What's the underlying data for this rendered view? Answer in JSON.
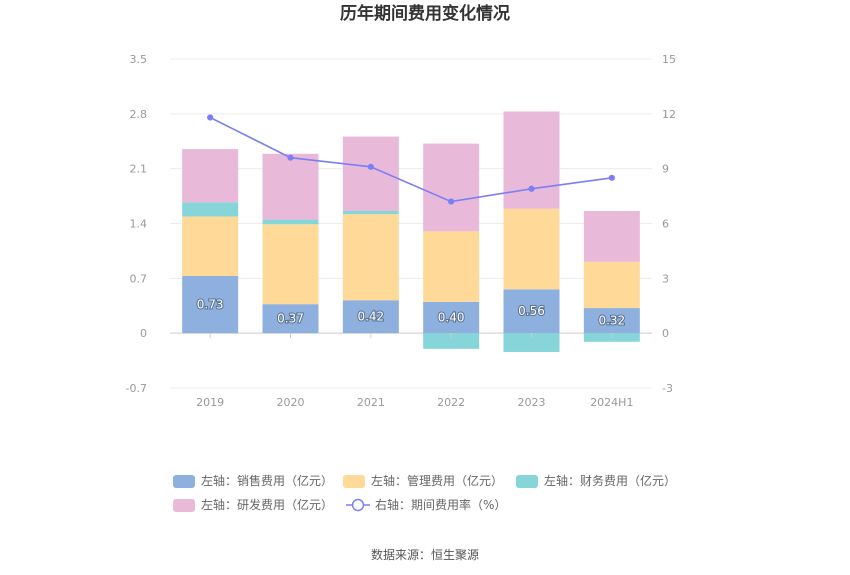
{
  "title": "历年期间费用变化情况",
  "source": "数据来源：恒生聚源",
  "chart_data": {
    "type": "bar",
    "categories": [
      "2019",
      "2020",
      "2021",
      "2022",
      "2023",
      "2024H1"
    ],
    "left_axis": {
      "min": -0.7,
      "max": 3.5,
      "ticks": [
        "-0.7",
        "0",
        "0.7",
        "1.4",
        "2.1",
        "2.8",
        "3.5"
      ]
    },
    "right_axis": {
      "min": -3,
      "max": 15,
      "ticks": [
        "-3",
        "0",
        "3",
        "6",
        "9",
        "12",
        "15"
      ]
    },
    "series": [
      {
        "name": "左轴：销售费用（亿元）",
        "type": "bar",
        "color": "#8eb0de",
        "values": [
          0.73,
          0.37,
          0.42,
          0.4,
          0.56,
          0.32
        ],
        "labels": [
          "0.73",
          "0.37",
          "0.42",
          "0.40",
          "0.56",
          "0.32"
        ]
      },
      {
        "name": "左轴：管理费用（亿元）",
        "type": "bar",
        "color": "#fed998",
        "values": [
          0.76,
          1.02,
          1.1,
          0.9,
          1.03,
          0.59
        ]
      },
      {
        "name": "左轴：财务费用（亿元）",
        "type": "bar",
        "color": "#86d5d9",
        "values": [
          0.18,
          0.06,
          0.04,
          -0.2,
          -0.24,
          -0.11
        ]
      },
      {
        "name": "左轴：研发费用（亿元）",
        "type": "bar",
        "color": "#e8b9d9",
        "values": [
          0.68,
          0.84,
          0.95,
          1.12,
          1.24,
          0.65
        ]
      },
      {
        "name": "右轴：期间费用率（%）",
        "type": "line",
        "color": "#7b7ff5",
        "values": [
          11.8,
          9.6,
          9.1,
          7.2,
          7.9,
          8.5
        ]
      }
    ],
    "grid": true,
    "legend_position": "bottom"
  }
}
